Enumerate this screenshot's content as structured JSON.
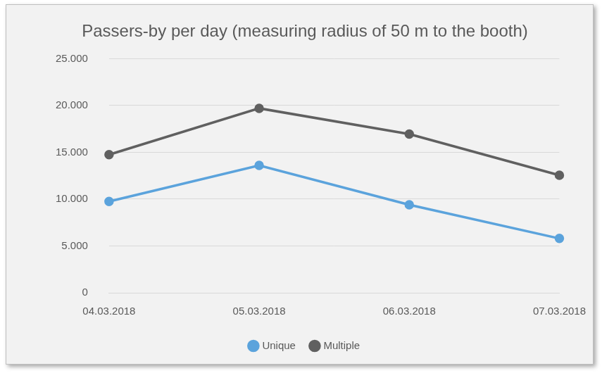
{
  "chart_data": {
    "type": "line",
    "title": "Passers-by per day (measuring radius of 50 m to the booth)",
    "categories": [
      "04.03.2018",
      "05.03.2018",
      "06.03.2018",
      "07.03.2018"
    ],
    "series": [
      {
        "name": "Unique",
        "color": "#5ba3dc",
        "values": [
          9750,
          13600,
          9400,
          5800
        ]
      },
      {
        "name": "Multiple",
        "color": "#606060",
        "values": [
          14750,
          19700,
          16950,
          12550
        ]
      }
    ],
    "ylim": [
      0,
      25000
    ],
    "yticks": [
      0,
      {
        "value": 5000,
        "label": "5.000"
      },
      {
        "value": 10000,
        "label": "10.000"
      },
      {
        "value": 15000,
        "label": "15.000"
      },
      {
        "value": 20000,
        "label": "20.000"
      },
      {
        "value": 25000,
        "label": "25.000"
      }
    ],
    "grid": true,
    "legend": "bottom",
    "marker": "circle",
    "line_style": "solid"
  }
}
